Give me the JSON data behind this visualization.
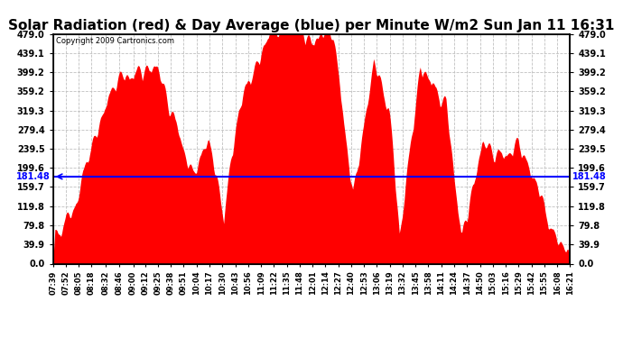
{
  "title": "Solar Radiation (red) & Day Average (blue) per Minute W/m2 Sun Jan 11 16:31",
  "copyright": "Copyright 2009 Cartronics.com",
  "avg_value": 181.48,
  "y_min": 0.0,
  "y_max": 479.0,
  "y_ticks": [
    0.0,
    39.9,
    79.8,
    119.8,
    159.7,
    199.6,
    239.5,
    279.4,
    319.3,
    359.2,
    399.2,
    439.1,
    479.0
  ],
  "x_labels": [
    "07:39",
    "07:52",
    "08:05",
    "08:18",
    "08:32",
    "08:46",
    "09:00",
    "09:12",
    "09:25",
    "09:38",
    "09:51",
    "10:04",
    "10:17",
    "10:30",
    "10:43",
    "10:56",
    "11:09",
    "11:22",
    "11:35",
    "11:48",
    "12:01",
    "12:14",
    "12:27",
    "12:40",
    "12:53",
    "13:06",
    "13:19",
    "13:32",
    "13:45",
    "13:58",
    "14:11",
    "14:24",
    "14:37",
    "14:50",
    "15:03",
    "15:16",
    "15:29",
    "15:42",
    "15:55",
    "16:08",
    "16:21"
  ],
  "fill_color": "#FF0000",
  "line_color": "#0000FF",
  "bg_color": "#FFFFFF",
  "grid_color": "#C0C0C0",
  "title_fontsize": 11,
  "axis_color": "#000000"
}
